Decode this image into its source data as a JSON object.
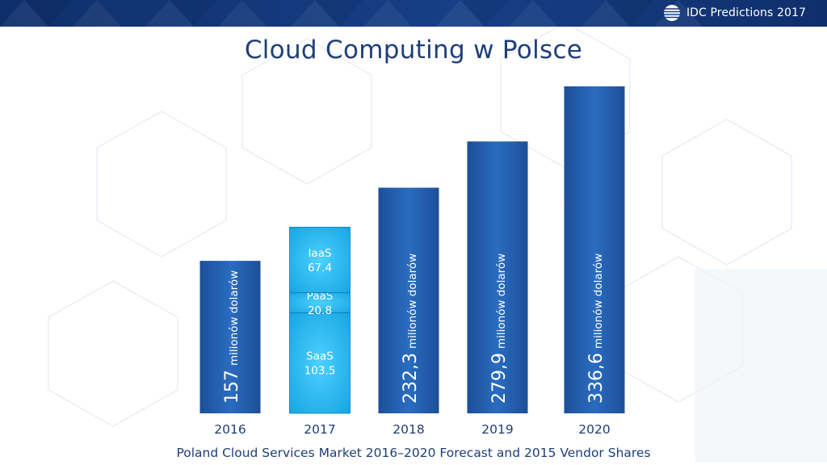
{
  "header": {
    "brand_text": "IDC Predictions 2017",
    "logo_icon": "idc-globe-icon"
  },
  "slide": {
    "title": "Cloud Computing w Polsce",
    "caption": "Poland Cloud Services Market 2016–2020 Forecast and 2015 Vendor Shares"
  },
  "colors": {
    "banner": "#163b7e",
    "title": "#1f3f7a",
    "bar_dark": "#1a58a6",
    "bar_light": "#1fb5ef"
  },
  "chart_data": {
    "type": "bar",
    "categories": [
      "2016",
      "2017",
      "2018",
      "2019",
      "2020"
    ],
    "values": [
      157,
      191.7,
      232.3,
      279.9,
      336.6
    ],
    "value_labels": [
      "157",
      "",
      "232,3",
      "279,9",
      "336,6"
    ],
    "unit_label": "milionów dolarów",
    "stacked_2017": [
      {
        "name": "SaaS",
        "value": 103.5,
        "label": "103.5"
      },
      {
        "name": "PaaS",
        "value": 20.8,
        "label": "20.8"
      },
      {
        "name": "IaaS",
        "value": 67.4,
        "label": "67.4"
      }
    ],
    "ylim": [
      0,
      336.6
    ],
    "grid": false,
    "title": "Cloud Computing w Polsce"
  }
}
